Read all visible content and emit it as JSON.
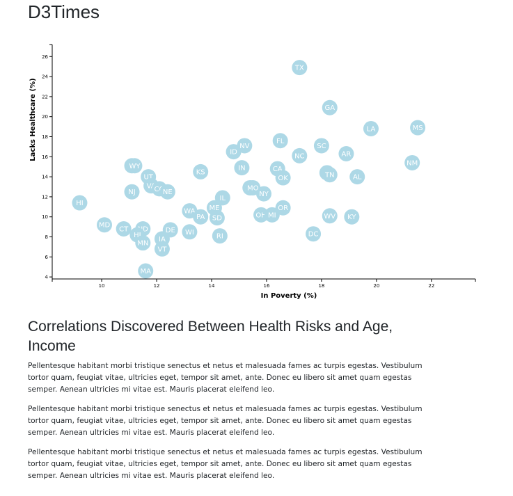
{
  "page": {
    "title": "D3Times"
  },
  "article": {
    "heading": "Correlations Discovered Between Health Risks and Age, Income",
    "paragraphs": [
      "Pellentesque habitant morbi tristique senectus et netus et malesuada fames ac turpis egestas. Vestibulum tortor quam, feugiat vitae, ultricies eget, tempor sit amet, ante. Donec eu libero sit amet quam egestas semper. Aenean ultricies mi vitae est. Mauris placerat eleifend leo.",
      "Pellentesque habitant morbi tristique senectus et netus et malesuada fames ac turpis egestas. Vestibulum tortor quam, feugiat vitae, ultricies eget, tempor sit amet, ante. Donec eu libero sit amet quam egestas semper. Aenean ultricies mi vitae est. Mauris placerat eleifend leo.",
      "Pellentesque habitant morbi tristique senectus et netus et malesuada fames ac turpis egestas. Vestibulum tortor quam, feugiat vitae, ultricies eget, tempor sit amet, ante. Donec eu libero sit amet quam egestas semper. Aenean ultricies mi vitae est. Mauris placerat eleifend leo."
    ]
  },
  "colors": {
    "marker": "#add8e6",
    "marker_label": "#ffffff",
    "axis": "#000000"
  },
  "chart_data": {
    "type": "scatter",
    "xlabel": "In Poverty (%)",
    "ylabel": "Lacks Healthcare (%)",
    "xlim": [
      8.2,
      23.6
    ],
    "ylim": [
      3.8,
      27.2
    ],
    "x_ticks": [
      10,
      12,
      14,
      16,
      18,
      20,
      22
    ],
    "y_ticks": [
      4,
      6,
      8,
      10,
      12,
      14,
      16,
      18,
      20,
      22,
      24,
      26
    ],
    "grid": false,
    "points": [
      {
        "abbr": "TX",
        "x": 17.2,
        "y": 24.9
      },
      {
        "abbr": "GA",
        "x": 18.3,
        "y": 20.9
      },
      {
        "abbr": "LA",
        "x": 19.8,
        "y": 18.8
      },
      {
        "abbr": "MS",
        "x": 21.5,
        "y": 18.9
      },
      {
        "abbr": "FL",
        "x": 16.5,
        "y": 17.6
      },
      {
        "abbr": "SC",
        "x": 18.0,
        "y": 17.1
      },
      {
        "abbr": "NV",
        "x": 15.2,
        "y": 17.1
      },
      {
        "abbr": "ID",
        "x": 14.8,
        "y": 16.5
      },
      {
        "abbr": "AR",
        "x": 18.9,
        "y": 16.3
      },
      {
        "abbr": "NC",
        "x": 17.2,
        "y": 16.1
      },
      {
        "abbr": "NM",
        "x": 21.3,
        "y": 15.4
      },
      {
        "abbr": "AK",
        "x": 11.1,
        "y": 15.1
      },
      {
        "abbr": "WY",
        "x": 11.2,
        "y": 15.1
      },
      {
        "abbr": "IN",
        "x": 15.1,
        "y": 14.9
      },
      {
        "abbr": "CA",
        "x": 16.4,
        "y": 14.8
      },
      {
        "abbr": "KS",
        "x": 13.6,
        "y": 14.5
      },
      {
        "abbr": "AZ",
        "x": 18.2,
        "y": 14.4
      },
      {
        "abbr": "TN",
        "x": 18.3,
        "y": 14.2
      },
      {
        "abbr": "AL",
        "x": 19.3,
        "y": 14.0
      },
      {
        "abbr": "OK",
        "x": 16.6,
        "y": 13.9
      },
      {
        "abbr": "UT",
        "x": 11.7,
        "y": 14.0
      },
      {
        "abbr": "VA",
        "x": 11.8,
        "y": 13.1
      },
      {
        "abbr": "CO",
        "x": 12.1,
        "y": 12.8
      },
      {
        "abbr": "NE",
        "x": 12.4,
        "y": 12.5
      },
      {
        "abbr": "NJ",
        "x": 11.1,
        "y": 12.5
      },
      {
        "abbr": "MT",
        "x": 15.4,
        "y": 12.9
      },
      {
        "abbr": "MO",
        "x": 15.5,
        "y": 12.9
      },
      {
        "abbr": "NY",
        "x": 15.9,
        "y": 12.3
      },
      {
        "abbr": "IL",
        "x": 14.4,
        "y": 11.9
      },
      {
        "abbr": "HI",
        "x": 9.2,
        "y": 11.4
      },
      {
        "abbr": "ME",
        "x": 14.1,
        "y": 10.9
      },
      {
        "abbr": "OR",
        "x": 16.6,
        "y": 10.9
      },
      {
        "abbr": "WA",
        "x": 13.2,
        "y": 10.6
      },
      {
        "abbr": "PA",
        "x": 13.6,
        "y": 10.0
      },
      {
        "abbr": "SD",
        "x": 14.2,
        "y": 9.9
      },
      {
        "abbr": "OH",
        "x": 15.8,
        "y": 10.2
      },
      {
        "abbr": "MI",
        "x": 16.2,
        "y": 10.2
      },
      {
        "abbr": "WV",
        "x": 18.3,
        "y": 10.1
      },
      {
        "abbr": "KY",
        "x": 19.1,
        "y": 10.0
      },
      {
        "abbr": "MD",
        "x": 10.1,
        "y": 9.2
      },
      {
        "abbr": "CT",
        "x": 10.8,
        "y": 8.8
      },
      {
        "abbr": "ND",
        "x": 11.5,
        "y": 8.8
      },
      {
        "abbr": "DE",
        "x": 12.5,
        "y": 8.7
      },
      {
        "abbr": "WI",
        "x": 13.2,
        "y": 8.5
      },
      {
        "abbr": "HI",
        "x": 11.3,
        "y": 8.2
      },
      {
        "abbr": "RI",
        "x": 14.3,
        "y": 8.1
      },
      {
        "abbr": "DC",
        "x": 17.7,
        "y": 8.3
      },
      {
        "abbr": "IA",
        "x": 12.2,
        "y": 7.8
      },
      {
        "abbr": "MN",
        "x": 11.5,
        "y": 7.4
      },
      {
        "abbr": "VT",
        "x": 12.2,
        "y": 6.8
      },
      {
        "abbr": "MA",
        "x": 11.6,
        "y": 4.6
      }
    ]
  }
}
